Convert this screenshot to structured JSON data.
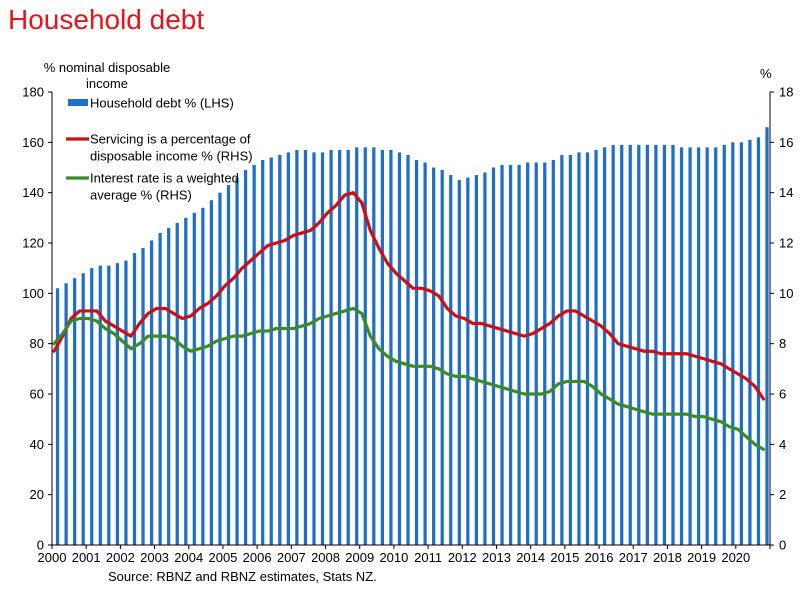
{
  "chart_data": {
    "type": "bar+line",
    "title": "Household debt",
    "ylabel_left": "% nominal disposable income",
    "ylabel_right": "%",
    "ylim_left": [
      0,
      180
    ],
    "ylim_right": [
      0,
      18
    ],
    "yticks_left": [
      "0",
      "20",
      "40",
      "60",
      "80",
      "100",
      "120",
      "140",
      "160",
      "180"
    ],
    "yticks_right": [
      "0",
      "2",
      "4",
      "6",
      "8",
      "10",
      "12",
      "14",
      "16",
      "18"
    ],
    "x_start": 2000,
    "x_end": 2021,
    "x_tick_labels": [
      "2000",
      "2001",
      "2002",
      "2003",
      "2004",
      "2005",
      "2006",
      "2007",
      "2008",
      "2009",
      "2010",
      "2011",
      "2012",
      "2013",
      "2014",
      "2015",
      "2016",
      "2017",
      "2018",
      "2019",
      "2020"
    ],
    "source": "Source: RBNZ and RBNZ estimates, Stats NZ.",
    "series": [
      {
        "name": "Household debt % (LHS)",
        "axis": "left",
        "kind": "bar",
        "color": "#1f6fc6",
        "values": [
          102,
          104,
          106,
          108,
          110,
          111,
          111,
          112,
          113,
          116,
          118,
          121,
          124,
          126,
          128,
          130,
          132,
          134,
          137,
          140,
          143,
          146,
          149,
          151,
          153,
          154,
          155,
          156,
          157,
          157,
          156,
          156,
          157,
          157,
          157,
          158,
          158,
          158,
          157,
          157,
          156,
          155,
          153,
          152,
          150,
          149,
          147,
          145,
          146,
          147,
          148,
          150,
          151,
          151,
          151,
          152,
          152,
          152,
          153,
          155,
          155,
          156,
          156,
          157,
          158,
          159,
          159,
          159,
          159,
          159,
          159,
          159,
          159,
          158,
          158,
          158,
          158,
          158,
          159,
          160,
          160,
          161,
          162,
          166
        ]
      },
      {
        "name": "Servicing is a percentage of disposable income % (RHS)",
        "axis": "right",
        "kind": "line",
        "color": "#cc0f16",
        "points": [
          [
            2000.0,
            7.7
          ],
          [
            2000.25,
            8.3
          ],
          [
            2000.5,
            9.0
          ],
          [
            2000.75,
            9.3
          ],
          [
            2001.0,
            9.3
          ],
          [
            2001.25,
            9.3
          ],
          [
            2001.5,
            8.9
          ],
          [
            2001.75,
            8.7
          ],
          [
            2002.0,
            8.5
          ],
          [
            2002.25,
            8.3
          ],
          [
            2002.5,
            8.8
          ],
          [
            2002.75,
            9.2
          ],
          [
            2003.0,
            9.4
          ],
          [
            2003.25,
            9.4
          ],
          [
            2003.5,
            9.2
          ],
          [
            2003.75,
            9.0
          ],
          [
            2004.0,
            9.1
          ],
          [
            2004.25,
            9.4
          ],
          [
            2004.5,
            9.6
          ],
          [
            2004.75,
            9.9
          ],
          [
            2005.0,
            10.3
          ],
          [
            2005.25,
            10.6
          ],
          [
            2005.5,
            11.0
          ],
          [
            2005.75,
            11.3
          ],
          [
            2006.0,
            11.6
          ],
          [
            2006.25,
            11.9
          ],
          [
            2006.5,
            12.0
          ],
          [
            2006.75,
            12.1
          ],
          [
            2007.0,
            12.3
          ],
          [
            2007.25,
            12.4
          ],
          [
            2007.5,
            12.5
          ],
          [
            2007.75,
            12.8
          ],
          [
            2008.0,
            13.2
          ],
          [
            2008.25,
            13.5
          ],
          [
            2008.5,
            13.9
          ],
          [
            2008.75,
            14.0
          ],
          [
            2009.0,
            13.6
          ],
          [
            2009.25,
            12.5
          ],
          [
            2009.5,
            11.8
          ],
          [
            2009.75,
            11.2
          ],
          [
            2010.0,
            10.8
          ],
          [
            2010.25,
            10.5
          ],
          [
            2010.5,
            10.2
          ],
          [
            2010.75,
            10.2
          ],
          [
            2011.0,
            10.1
          ],
          [
            2011.25,
            9.9
          ],
          [
            2011.5,
            9.4
          ],
          [
            2011.75,
            9.1
          ],
          [
            2012.0,
            9.0
          ],
          [
            2012.25,
            8.8
          ],
          [
            2012.5,
            8.8
          ],
          [
            2012.75,
            8.7
          ],
          [
            2013.0,
            8.6
          ],
          [
            2013.25,
            8.5
          ],
          [
            2013.5,
            8.4
          ],
          [
            2013.75,
            8.3
          ],
          [
            2014.0,
            8.4
          ],
          [
            2014.25,
            8.6
          ],
          [
            2014.5,
            8.8
          ],
          [
            2014.75,
            9.1
          ],
          [
            2015.0,
            9.3
          ],
          [
            2015.25,
            9.3
          ],
          [
            2015.5,
            9.1
          ],
          [
            2015.75,
            8.9
          ],
          [
            2016.0,
            8.7
          ],
          [
            2016.25,
            8.4
          ],
          [
            2016.5,
            8.0
          ],
          [
            2016.75,
            7.9
          ],
          [
            2017.0,
            7.8
          ],
          [
            2017.25,
            7.7
          ],
          [
            2017.5,
            7.7
          ],
          [
            2017.75,
            7.6
          ],
          [
            2018.0,
            7.6
          ],
          [
            2018.25,
            7.6
          ],
          [
            2018.5,
            7.6
          ],
          [
            2018.75,
            7.5
          ],
          [
            2019.0,
            7.4
          ],
          [
            2019.25,
            7.3
          ],
          [
            2019.5,
            7.2
          ],
          [
            2019.75,
            7.0
          ],
          [
            2020.0,
            6.8
          ],
          [
            2020.25,
            6.6
          ],
          [
            2020.5,
            6.3
          ],
          [
            2020.75,
            5.8
          ]
        ]
      },
      {
        "name": "Interest rate is a weighted average % (RHS)",
        "axis": "right",
        "kind": "line",
        "color": "#3a8a2a",
        "points": [
          [
            2000.0,
            8.0
          ],
          [
            2000.25,
            8.4
          ],
          [
            2000.5,
            8.9
          ],
          [
            2000.75,
            9.0
          ],
          [
            2001.0,
            9.0
          ],
          [
            2001.25,
            8.9
          ],
          [
            2001.5,
            8.6
          ],
          [
            2001.75,
            8.4
          ],
          [
            2002.0,
            8.1
          ],
          [
            2002.25,
            7.8
          ],
          [
            2002.5,
            8.0
          ],
          [
            2002.75,
            8.3
          ],
          [
            2003.0,
            8.3
          ],
          [
            2003.25,
            8.3
          ],
          [
            2003.5,
            8.2
          ],
          [
            2003.75,
            7.9
          ],
          [
            2004.0,
            7.7
          ],
          [
            2004.25,
            7.8
          ],
          [
            2004.5,
            7.9
          ],
          [
            2004.75,
            8.1
          ],
          [
            2005.0,
            8.2
          ],
          [
            2005.25,
            8.3
          ],
          [
            2005.5,
            8.3
          ],
          [
            2005.75,
            8.4
          ],
          [
            2006.0,
            8.5
          ],
          [
            2006.25,
            8.5
          ],
          [
            2006.5,
            8.6
          ],
          [
            2006.75,
            8.6
          ],
          [
            2007.0,
            8.6
          ],
          [
            2007.25,
            8.7
          ],
          [
            2007.5,
            8.8
          ],
          [
            2007.75,
            9.0
          ],
          [
            2008.0,
            9.1
          ],
          [
            2008.25,
            9.2
          ],
          [
            2008.5,
            9.3
          ],
          [
            2008.75,
            9.4
          ],
          [
            2009.0,
            9.2
          ],
          [
            2009.25,
            8.3
          ],
          [
            2009.5,
            7.8
          ],
          [
            2009.75,
            7.5
          ],
          [
            2010.0,
            7.3
          ],
          [
            2010.25,
            7.2
          ],
          [
            2010.5,
            7.1
          ],
          [
            2010.75,
            7.1
          ],
          [
            2011.0,
            7.1
          ],
          [
            2011.25,
            7.0
          ],
          [
            2011.5,
            6.8
          ],
          [
            2011.75,
            6.7
          ],
          [
            2012.0,
            6.7
          ],
          [
            2012.25,
            6.6
          ],
          [
            2012.5,
            6.5
          ],
          [
            2012.75,
            6.4
          ],
          [
            2013.0,
            6.3
          ],
          [
            2013.25,
            6.2
          ],
          [
            2013.5,
            6.1
          ],
          [
            2013.75,
            6.0
          ],
          [
            2014.0,
            6.0
          ],
          [
            2014.25,
            6.0
          ],
          [
            2014.5,
            6.1
          ],
          [
            2014.75,
            6.4
          ],
          [
            2015.0,
            6.5
          ],
          [
            2015.25,
            6.5
          ],
          [
            2015.5,
            6.5
          ],
          [
            2015.75,
            6.3
          ],
          [
            2016.0,
            6.0
          ],
          [
            2016.25,
            5.8
          ],
          [
            2016.5,
            5.6
          ],
          [
            2016.75,
            5.5
          ],
          [
            2017.0,
            5.4
          ],
          [
            2017.25,
            5.3
          ],
          [
            2017.5,
            5.2
          ],
          [
            2017.75,
            5.2
          ],
          [
            2018.0,
            5.2
          ],
          [
            2018.25,
            5.2
          ],
          [
            2018.5,
            5.2
          ],
          [
            2018.75,
            5.1
          ],
          [
            2019.0,
            5.1
          ],
          [
            2019.25,
            5.0
          ],
          [
            2019.5,
            4.9
          ],
          [
            2019.75,
            4.7
          ],
          [
            2020.0,
            4.6
          ],
          [
            2020.25,
            4.3
          ],
          [
            2020.5,
            4.0
          ],
          [
            2020.75,
            3.8
          ]
        ]
      }
    ]
  },
  "legend": [
    {
      "label_lines": [
        "Household debt % (LHS)"
      ],
      "marker": "bar",
      "color": "#1f6fc6"
    },
    {
      "label_lines": [
        "Servicing is a percentage of",
        "disposable income % (RHS)"
      ],
      "marker": "line",
      "color": "#cc0f16"
    },
    {
      "label_lines": [
        "Interest rate is a weighted",
        "average % (RHS)"
      ],
      "marker": "line",
      "color": "#3a8a2a"
    }
  ]
}
